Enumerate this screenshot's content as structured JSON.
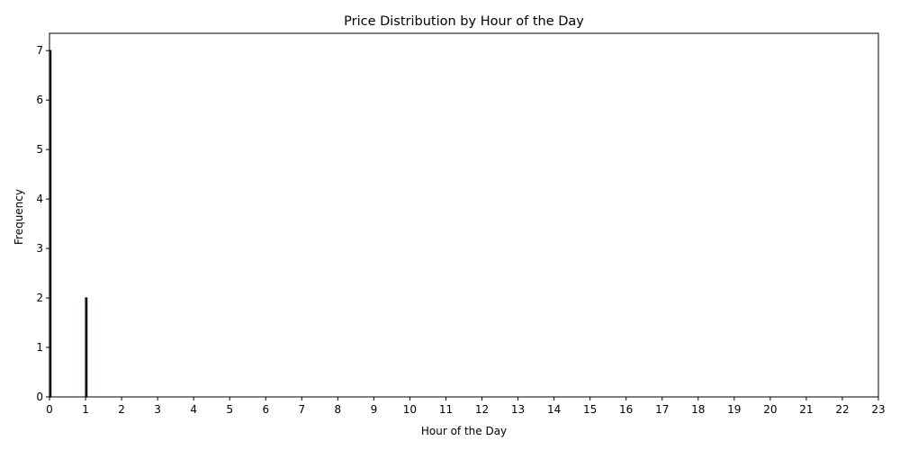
{
  "chart_data": {
    "type": "bar",
    "title": "Price Distribution by Hour of the Day",
    "xlabel": "Hour of the Day",
    "ylabel": "Frequency",
    "xlim": [
      0,
      23
    ],
    "ylim": [
      0,
      7.35
    ],
    "x_ticks": [
      0,
      1,
      2,
      3,
      4,
      5,
      6,
      7,
      8,
      9,
      10,
      11,
      12,
      13,
      14,
      15,
      16,
      17,
      18,
      19,
      20,
      21,
      22,
      23
    ],
    "y_ticks": [
      0,
      1,
      2,
      3,
      4,
      5,
      6,
      7
    ],
    "bars": [
      {
        "x": 0.0,
        "width": 0.04,
        "value": 7
      },
      {
        "x": 1.0,
        "width": 0.04,
        "value": 2
      }
    ],
    "bar_color": "#1f77b4",
    "edge_color": "#000000",
    "grid": false,
    "legend": "none"
  }
}
